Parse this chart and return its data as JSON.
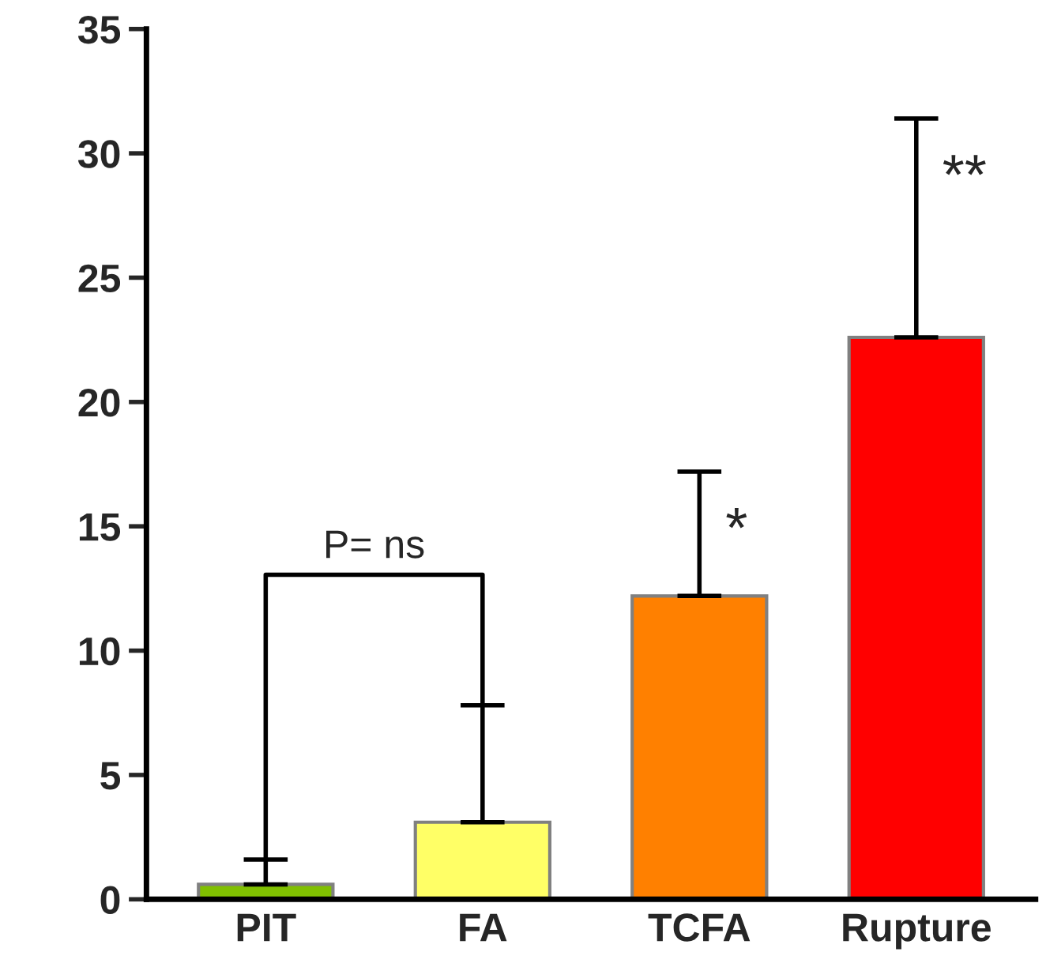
{
  "chart_data": {
    "type": "bar",
    "categories": [
      "PIT",
      "FA",
      "TCFA",
      "Rupture"
    ],
    "values": [
      0.6,
      3.1,
      12.2,
      22.6
    ],
    "colors": [
      "#80c000",
      "#ffff66",
      "#ff8000",
      "#ff0000"
    ],
    "errors": [
      [
        0.6,
        1.6
      ],
      [
        3.1,
        7.8
      ],
      [
        12.2,
        17.2
      ],
      [
        22.6,
        31.4
      ]
    ],
    "ylim": [
      0,
      35
    ],
    "yticks": [
      0,
      5,
      10,
      15,
      20,
      25,
      30,
      35
    ],
    "grid": false,
    "legend": false,
    "annotations": [
      "P= ns",
      "*",
      "**"
    ]
  }
}
